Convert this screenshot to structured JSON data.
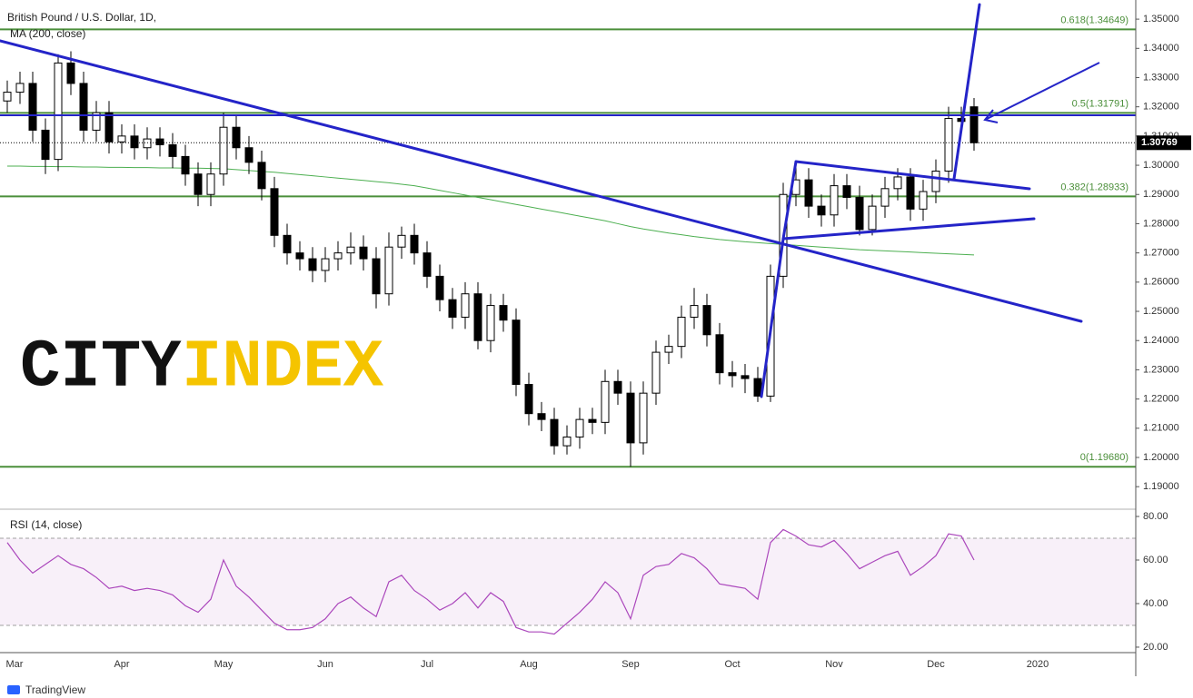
{
  "chart_data": {
    "type": "candlestick",
    "title": "British Pound / U.S. Dollar, 1D,",
    "categories": [
      "Mar",
      null,
      null,
      null,
      null,
      null,
      null,
      null,
      null,
      "Apr",
      null,
      null,
      null,
      null,
      null,
      null,
      null,
      "May",
      null,
      null,
      null,
      null,
      null,
      null,
      null,
      "Jun",
      null,
      null,
      null,
      null,
      null,
      null,
      null,
      "Jul",
      null,
      null,
      null,
      null,
      null,
      null,
      null,
      "Aug",
      null,
      null,
      null,
      null,
      null,
      null,
      null,
      "Sep",
      null,
      null,
      null,
      null,
      null,
      null,
      null,
      "Oct",
      null,
      null,
      null,
      null,
      null,
      null,
      null,
      "Nov",
      null,
      null,
      null,
      null,
      null,
      null,
      null,
      "Dec",
      null,
      null,
      null,
      null,
      null,
      null,
      null,
      "2020",
      null,
      null,
      null,
      null,
      null,
      null,
      null
    ],
    "ohlc": {
      "open": [
        1.322,
        1.325,
        1.328,
        1.312,
        1.302,
        1.335,
        1.328,
        1.312,
        1.318,
        1.308,
        1.31,
        1.306,
        1.309,
        1.307,
        1.303,
        1.297,
        1.29,
        1.297,
        1.313,
        1.306,
        1.301,
        1.292,
        1.276,
        1.27,
        1.268,
        1.264,
        1.268,
        1.27,
        1.272,
        1.268,
        1.256,
        1.272,
        1.276,
        1.27,
        1.262,
        1.254,
        1.248,
        1.256,
        1.24,
        1.252,
        1.247,
        1.225,
        1.215,
        1.213,
        1.204,
        1.207,
        1.213,
        1.212,
        1.226,
        1.222,
        1.205,
        1.222,
        1.236,
        1.238,
        1.248,
        1.252,
        1.242,
        1.229,
        1.228,
        1.227,
        1.221,
        1.262,
        1.29,
        1.295,
        1.286,
        1.283,
        1.293,
        1.289,
        1.278,
        1.286,
        1.292,
        1.296,
        1.285,
        1.291,
        1.298,
        1.316,
        1.32,
        null,
        null,
        null,
        null,
        null,
        null,
        null,
        null,
        null,
        null,
        null,
        null
      ],
      "high": [
        1.329,
        1.332,
        1.332,
        1.316,
        1.338,
        1.339,
        1.332,
        1.322,
        1.322,
        1.314,
        1.314,
        1.313,
        1.313,
        1.311,
        1.307,
        1.301,
        1.301,
        1.318,
        1.317,
        1.31,
        1.305,
        1.296,
        1.28,
        1.274,
        1.272,
        1.272,
        1.274,
        1.277,
        1.276,
        1.272,
        1.277,
        1.279,
        1.28,
        1.274,
        1.266,
        1.258,
        1.26,
        1.26,
        1.256,
        1.256,
        1.251,
        1.229,
        1.219,
        1.217,
        1.211,
        1.217,
        1.217,
        1.23,
        1.23,
        1.226,
        1.226,
        1.24,
        1.242,
        1.252,
        1.258,
        1.256,
        1.246,
        1.233,
        1.232,
        1.231,
        1.266,
        1.294,
        1.3013,
        1.299,
        1.29,
        1.297,
        1.297,
        1.293,
        1.29,
        1.296,
        1.299,
        1.299,
        1.295,
        1.302,
        1.32,
        1.32,
        1.323,
        null,
        null,
        null,
        null,
        null,
        null,
        null,
        null,
        null,
        null,
        null,
        null
      ],
      "low": [
        1.318,
        1.321,
        1.308,
        1.297,
        1.298,
        1.324,
        1.308,
        1.308,
        1.304,
        1.304,
        1.302,
        1.302,
        1.303,
        1.299,
        1.293,
        1.286,
        1.286,
        1.293,
        1.302,
        1.297,
        1.288,
        1.272,
        1.266,
        1.264,
        1.26,
        1.26,
        1.264,
        1.266,
        1.264,
        1.251,
        1.252,
        1.268,
        1.266,
        1.258,
        1.25,
        1.244,
        1.244,
        1.237,
        1.236,
        1.243,
        1.221,
        1.211,
        1.209,
        1.201,
        1.201,
        1.203,
        1.208,
        1.208,
        1.218,
        1.1968,
        1.201,
        1.218,
        1.232,
        1.234,
        1.244,
        1.238,
        1.225,
        1.224,
        1.222,
        1.219,
        1.219,
        1.258,
        1.286,
        1.282,
        1.279,
        1.279,
        1.285,
        1.276,
        1.276,
        1.282,
        1.288,
        1.281,
        1.281,
        1.287,
        1.294,
        1.311,
        1.305,
        null,
        null,
        null,
        null,
        null,
        null,
        null,
        null,
        null,
        null,
        null,
        null
      ],
      "close": [
        1.325,
        1.328,
        1.312,
        1.302,
        1.335,
        1.328,
        1.312,
        1.318,
        1.308,
        1.31,
        1.306,
        1.309,
        1.307,
        1.303,
        1.297,
        1.29,
        1.297,
        1.313,
        1.306,
        1.301,
        1.292,
        1.276,
        1.27,
        1.268,
        1.264,
        1.268,
        1.27,
        1.272,
        1.268,
        1.256,
        1.272,
        1.276,
        1.27,
        1.262,
        1.254,
        1.248,
        1.256,
        1.24,
        1.252,
        1.247,
        1.225,
        1.215,
        1.213,
        1.204,
        1.207,
        1.213,
        1.212,
        1.226,
        1.222,
        1.205,
        1.222,
        1.236,
        1.238,
        1.248,
        1.252,
        1.242,
        1.229,
        1.228,
        1.227,
        1.221,
        1.262,
        1.29,
        1.295,
        1.286,
        1.283,
        1.293,
        1.289,
        1.278,
        1.286,
        1.292,
        1.296,
        1.285,
        1.291,
        1.298,
        1.316,
        1.315,
        1.3077,
        null,
        null,
        null,
        null,
        null,
        null,
        null,
        null,
        null,
        null,
        null,
        null
      ]
    },
    "up_color": "#ffffff",
    "down_color": "#000000",
    "ma": {
      "name": "MA (200, close)",
      "color": "#4caf50",
      "values": [
        1.2997,
        1.2997,
        1.2996,
        1.2996,
        1.2995,
        1.2995,
        1.2994,
        1.2994,
        1.2993,
        1.2993,
        1.2992,
        1.2992,
        1.2991,
        1.2991,
        1.299,
        1.299,
        1.2989,
        1.2988,
        1.2985,
        1.2982,
        1.2979,
        1.2976,
        1.2972,
        1.2968,
        1.2964,
        1.296,
        1.2956,
        1.2952,
        1.2948,
        1.2944,
        1.294,
        1.2935,
        1.293,
        1.2922,
        1.2914,
        1.2906,
        1.2898,
        1.289,
        1.2882,
        1.2874,
        1.2866,
        1.2858,
        1.285,
        1.2842,
        1.2834,
        1.2826,
        1.2818,
        1.281,
        1.28,
        1.279,
        1.2782,
        1.2775,
        1.2768,
        1.2762,
        1.2756,
        1.2751,
        1.2746,
        1.2742,
        1.2738,
        1.2735,
        1.2732,
        1.2729,
        1.2726,
        1.2723,
        1.272,
        1.2717,
        1.2714,
        1.2711,
        1.2709,
        1.2707,
        1.2705,
        1.2703,
        1.2701,
        1.2699,
        1.2697,
        1.2695,
        1.2693,
        null,
        null,
        null,
        null,
        null,
        null,
        null,
        null,
        null,
        null,
        null,
        null
      ]
    },
    "ylim": [
      1.1826,
      1.355
    ],
    "yticks": [
      {
        "value": 1.19,
        "label": "1.19000"
      },
      {
        "value": 1.2,
        "label": "1.20000"
      },
      {
        "value": 1.21,
        "label": "1.21000"
      },
      {
        "value": 1.22,
        "label": "1.22000"
      },
      {
        "value": 1.23,
        "label": "1.23000"
      },
      {
        "value": 1.24,
        "label": "1.24000"
      },
      {
        "value": 1.25,
        "label": "1.25000"
      },
      {
        "value": 1.26,
        "label": "1.26000"
      },
      {
        "value": 1.27,
        "label": "1.27000"
      },
      {
        "value": 1.28,
        "label": "1.28000"
      },
      {
        "value": 1.29,
        "label": "1.29000"
      },
      {
        "value": 1.3,
        "label": "1.30000"
      },
      {
        "value": 1.31,
        "label": "1.31000"
      },
      {
        "value": 1.32,
        "label": "1.32000"
      },
      {
        "value": 1.33,
        "label": "1.33000"
      },
      {
        "value": 1.34,
        "label": "1.34000"
      },
      {
        "value": 1.35,
        "label": "1.35000"
      }
    ],
    "grid": false,
    "fib_color": "#4b8f3a",
    "fib_levels": [
      {
        "value": 1.34649,
        "label": "0.618(1.34649)"
      },
      {
        "value": 1.31791,
        "label": "0.5(1.31791)"
      },
      {
        "value": 1.28933,
        "label": "0.382(1.28933)"
      },
      {
        "value": 1.1968,
        "label": "0(1.19680)"
      }
    ],
    "last_price": 1.30769,
    "rsi": {
      "name": "RSI (14, close)",
      "color": "#ab47bc",
      "values": [
        68,
        60,
        54,
        58,
        62,
        58,
        56,
        52,
        47,
        48,
        46,
        47,
        46,
        44,
        39,
        36,
        42,
        60,
        48,
        43,
        37,
        31,
        28,
        28,
        29,
        33,
        40,
        43,
        38,
        34,
        50,
        53,
        46,
        42,
        37,
        40,
        45,
        38,
        45,
        41,
        29,
        27,
        27,
        26,
        31,
        36,
        42,
        50,
        45,
        33,
        53,
        57,
        58,
        63,
        61,
        56,
        49,
        48,
        47,
        42,
        68,
        74,
        71,
        67,
        66,
        69,
        63,
        56,
        59,
        62,
        64,
        53,
        57,
        62,
        72,
        71,
        60,
        null,
        null,
        null,
        null,
        null,
        null,
        null,
        null,
        null,
        null,
        null,
        null
      ],
      "ylim": [
        17.9,
        82.5
      ],
      "yticks": [
        {
          "value": 20,
          "label": "20.00"
        },
        {
          "value": 40,
          "label": "40.00"
        },
        {
          "value": 60,
          "label": "60.00"
        },
        {
          "value": 80,
          "label": "80.00"
        }
      ],
      "band": [
        30,
        70
      ]
    },
    "watermark": [
      "CITY",
      "INDEX"
    ],
    "footer": "TradingView"
  }
}
